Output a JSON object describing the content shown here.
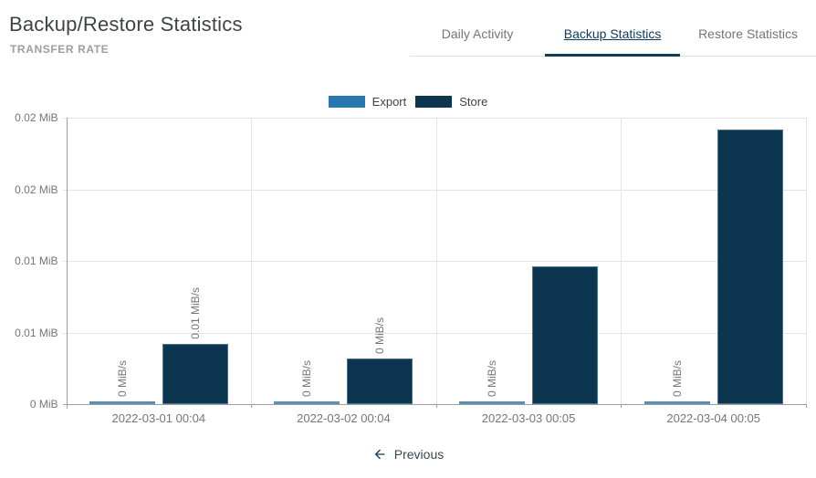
{
  "header": {
    "title": "Backup/Restore Statistics",
    "subtitle": "TRANSFER RATE"
  },
  "tabs": [
    {
      "label": "Daily Activity",
      "active": false
    },
    {
      "label": "Backup Statistics",
      "active": true
    },
    {
      "label": "Restore Statistics",
      "active": false
    }
  ],
  "footer": {
    "previous_label": "Previous"
  },
  "colors": {
    "accent_navy": "#0d3c5e",
    "export_blue": "#2878af",
    "export_bar_blue": "#5b8fb5",
    "store_navy": "#0c3550",
    "gridline": "#e4e4e4",
    "axis": "#9e9e9e",
    "label_gray": "#757575"
  },
  "chart_data": {
    "type": "bar",
    "title": "TRANSFER RATE",
    "categories": [
      "2022-03-01 00:04",
      "2022-03-02 00:04",
      "2022-03-03 00:05",
      "2022-03-04 00:05"
    ],
    "series": [
      {
        "name": "Export",
        "color": "#2878af",
        "bar_color": "#5b8fb5",
        "values": [
          0.0002,
          0.0002,
          0.0002,
          0.0002
        ],
        "bar_labels": [
          "0 MiB/s",
          "0 MiB/s",
          "0 MiB/s",
          "0 MiB/s"
        ]
      },
      {
        "name": "Store",
        "color": "#0c3550",
        "bar_color": "#0c3550",
        "values": [
          0.0042,
          0.0032,
          0.0096,
          0.0192
        ],
        "bar_labels": [
          "0.01 MiB/s",
          "0 MiB/s",
          "",
          ""
        ]
      }
    ],
    "ylim": [
      0,
      0.02
    ],
    "ytick_labels_bottom_to_top": [
      "0 MiB",
      "0.01 MiB",
      "0.01 MiB",
      "0.02 MiB",
      "0.02 MiB"
    ],
    "grid": true,
    "legend_position": "top-center"
  }
}
